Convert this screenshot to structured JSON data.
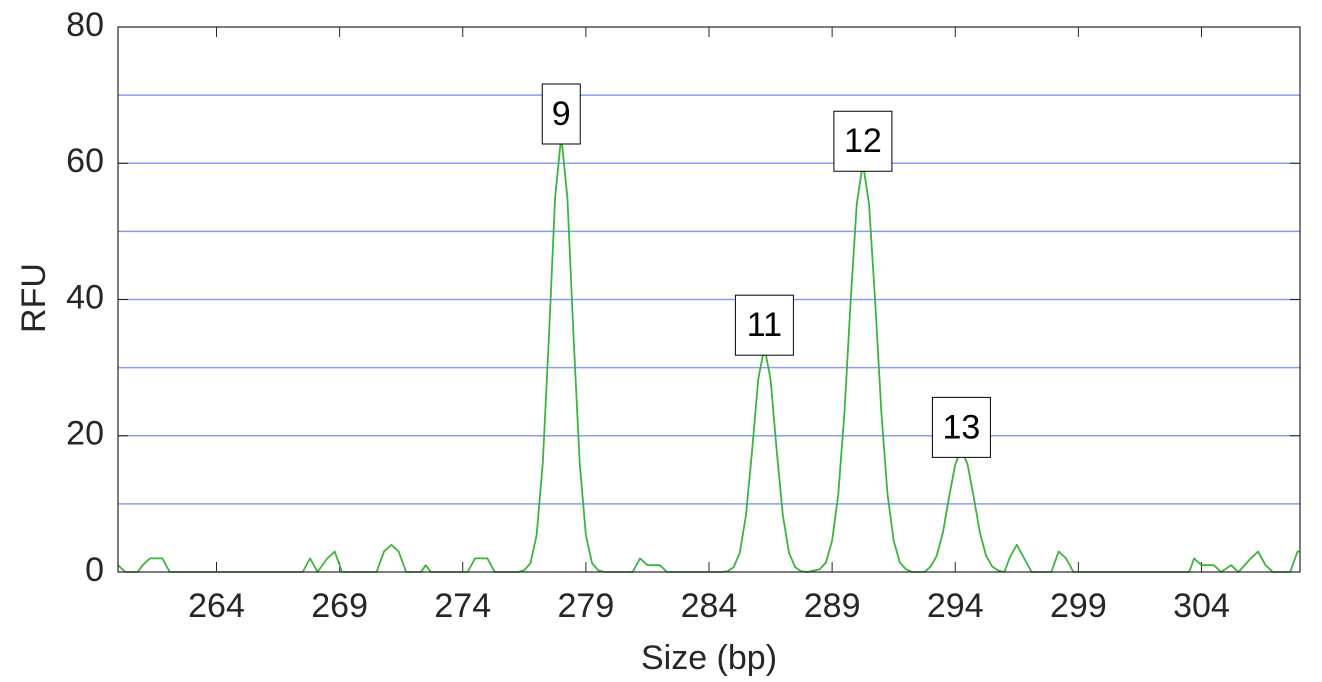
{
  "chart_data": {
    "type": "line",
    "xlabel": "Size (bp)",
    "ylabel": "RFU",
    "xlim": [
      260,
      308
    ],
    "ylim": [
      0,
      80
    ],
    "xticks": [
      264,
      269,
      274,
      279,
      284,
      289,
      294,
      299,
      304
    ],
    "yticks": [
      0,
      20,
      40,
      60,
      80
    ],
    "hlines": [
      10,
      20,
      30,
      40,
      50,
      60,
      70
    ],
    "hline_color": "#8a9cf0",
    "series": [
      {
        "color": "#3cb43c",
        "x": [
          260,
          260.3,
          260.8,
          261,
          261.3,
          261.8,
          262.1,
          267.5,
          267.8,
          268.1,
          268.5,
          268.8,
          269.1,
          270.5,
          270.8,
          271.1,
          271.4,
          271.7,
          272.3,
          272.5,
          272.7,
          274.2,
          274.5,
          275,
          275.3,
          276.25,
          276.5,
          276.75,
          277,
          277.25,
          277.5,
          277.75,
          278,
          278.25,
          278.5,
          278.75,
          279,
          279.25,
          279.5,
          279.75,
          280.9,
          281.2,
          281.5,
          282,
          282.3,
          284.5,
          284.75,
          285,
          285.25,
          285.5,
          285.75,
          286,
          286.25,
          286.5,
          286.75,
          287,
          287.25,
          287.5,
          287.75,
          288,
          288.5,
          288.75,
          289,
          289.25,
          289.5,
          289.75,
          290,
          290.25,
          290.5,
          290.75,
          291,
          291.25,
          291.5,
          291.75,
          292,
          292.25,
          292.75,
          293,
          293.25,
          293.5,
          293.75,
          294,
          294.25,
          294.5,
          294.75,
          295,
          295.25,
          295.5,
          295.75,
          296,
          296.2,
          296.5,
          296.8,
          297.1,
          297.9,
          298.2,
          298.5,
          298.8,
          303.5,
          303.7,
          304,
          304.5,
          304.8,
          305.2,
          305.5,
          306,
          306.3,
          306.6,
          306.9,
          307.6,
          307.9,
          308
        ],
        "values": [
          1,
          0,
          0,
          1,
          2,
          2,
          0,
          0,
          2,
          0,
          2,
          3,
          0,
          0,
          3,
          4,
          3,
          0,
          0,
          1,
          0,
          0,
          2,
          2,
          0,
          0,
          0.25,
          1.3,
          5.4,
          16,
          34.5,
          54.9,
          64,
          54.9,
          34.5,
          16,
          5.4,
          1.3,
          0.25,
          0,
          0,
          2,
          1,
          1,
          0,
          0,
          0.1,
          0.7,
          2.8,
          8.3,
          17.8,
          28.3,
          33,
          28.3,
          17.8,
          8.3,
          2.8,
          0.7,
          0.1,
          0,
          0.4,
          1.4,
          4.6,
          11.4,
          23.4,
          39.6,
          54,
          60,
          54,
          39.6,
          23.4,
          11.4,
          4.6,
          1.4,
          0.4,
          0,
          0,
          0.8,
          2.4,
          5.8,
          11,
          15.8,
          18,
          15.8,
          11,
          5.8,
          2.4,
          0.8,
          0.2,
          0,
          2,
          4,
          2,
          0,
          0,
          3,
          2,
          0,
          0,
          2,
          1,
          1,
          0,
          1,
          0,
          2,
          3,
          1,
          0,
          0,
          3,
          3
        ]
      }
    ],
    "peak_labels": [
      {
        "label": "9",
        "x": 278,
        "y": 64
      },
      {
        "label": "11",
        "x": 286.25,
        "y": 33
      },
      {
        "label": "12",
        "x": 290.25,
        "y": 60
      },
      {
        "label": "13",
        "x": 294.25,
        "y": 18
      }
    ]
  }
}
